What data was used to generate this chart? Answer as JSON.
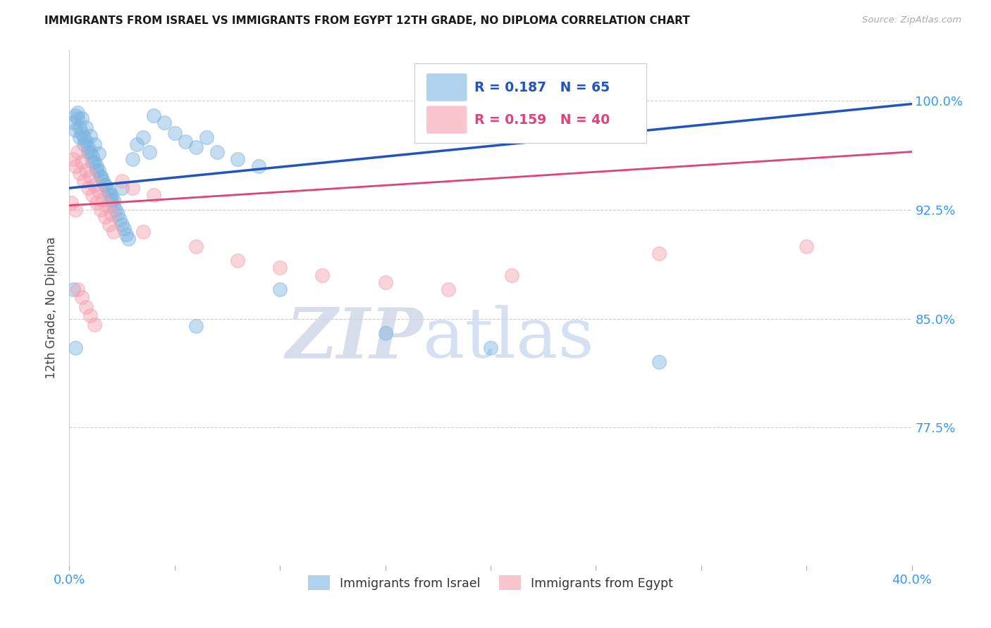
{
  "title": "IMMIGRANTS FROM ISRAEL VS IMMIGRANTS FROM EGYPT 12TH GRADE, NO DIPLOMA CORRELATION CHART",
  "source": "Source: ZipAtlas.com",
  "ylabel": "12th Grade, No Diploma",
  "xlim": [
    0.0,
    0.4
  ],
  "ylim": [
    0.68,
    1.035
  ],
  "israel_R": 0.187,
  "israel_N": 65,
  "egypt_R": 0.159,
  "egypt_N": 40,
  "israel_color": "#7EB5E0",
  "egypt_color": "#F5A0B0",
  "israel_line_color": "#2255BB",
  "egypt_line_color": "#DD4477",
  "legend_israel": "Immigrants from Israel",
  "legend_egypt": "Immigrants from Egypt",
  "watermark_zip": "ZIP",
  "watermark_atlas": "atlas",
  "background_color": "#ffffff",
  "grid_color": "#cccccc",
  "ytick_right": [
    0.775,
    0.85,
    0.925,
    1.0
  ],
  "ytick_right_labels": [
    "77.5%",
    "85.0%",
    "92.5%",
    "100.0%"
  ],
  "israel_x": [
    0.002,
    0.003,
    0.004,
    0.005,
    0.006,
    0.007,
    0.008,
    0.009,
    0.01,
    0.011,
    0.012,
    0.013,
    0.014,
    0.015,
    0.016,
    0.017,
    0.018,
    0.019,
    0.02,
    0.021,
    0.022,
    0.023,
    0.024,
    0.025,
    0.026,
    0.027,
    0.028,
    0.03,
    0.032,
    0.035,
    0.038,
    0.04,
    0.045,
    0.05,
    0.055,
    0.06,
    0.065,
    0.07,
    0.08,
    0.09,
    0.003,
    0.005,
    0.007,
    0.009,
    0.011,
    0.013,
    0.015,
    0.017,
    0.019,
    0.021,
    0.004,
    0.006,
    0.008,
    0.01,
    0.012,
    0.014,
    0.002,
    0.003,
    0.02,
    0.025,
    0.06,
    0.1,
    0.15,
    0.2,
    0.28
  ],
  "israel_y": [
    0.985,
    0.99,
    0.988,
    0.982,
    0.978,
    0.975,
    0.972,
    0.968,
    0.965,
    0.962,
    0.958,
    0.955,
    0.952,
    0.948,
    0.945,
    0.942,
    0.938,
    0.935,
    0.932,
    0.928,
    0.925,
    0.922,
    0.918,
    0.915,
    0.912,
    0.908,
    0.905,
    0.96,
    0.97,
    0.975,
    0.965,
    0.99,
    0.985,
    0.978,
    0.972,
    0.968,
    0.975,
    0.965,
    0.96,
    0.955,
    0.98,
    0.975,
    0.97,
    0.965,
    0.958,
    0.952,
    0.948,
    0.942,
    0.938,
    0.932,
    0.992,
    0.988,
    0.982,
    0.976,
    0.97,
    0.964,
    0.87,
    0.83,
    0.935,
    0.94,
    0.845,
    0.87,
    0.84,
    0.83,
    0.82
  ],
  "egypt_x": [
    0.002,
    0.004,
    0.006,
    0.008,
    0.01,
    0.012,
    0.014,
    0.016,
    0.018,
    0.02,
    0.003,
    0.005,
    0.007,
    0.009,
    0.011,
    0.013,
    0.015,
    0.017,
    0.019,
    0.021,
    0.025,
    0.03,
    0.035,
    0.04,
    0.06,
    0.08,
    0.1,
    0.12,
    0.15,
    0.18,
    0.21,
    0.28,
    0.35,
    0.004,
    0.006,
    0.008,
    0.01,
    0.012,
    0.003,
    0.001
  ],
  "egypt_y": [
    0.96,
    0.965,
    0.958,
    0.952,
    0.948,
    0.942,
    0.938,
    0.932,
    0.928,
    0.922,
    0.955,
    0.95,
    0.945,
    0.94,
    0.935,
    0.93,
    0.925,
    0.92,
    0.915,
    0.91,
    0.945,
    0.94,
    0.91,
    0.935,
    0.9,
    0.89,
    0.885,
    0.88,
    0.875,
    0.87,
    0.88,
    0.895,
    0.9,
    0.87,
    0.865,
    0.858,
    0.852,
    0.846,
    0.925,
    0.93
  ],
  "isr_trend_x0": 0.0,
  "isr_trend_y0": 0.94,
  "isr_trend_x1": 0.4,
  "isr_trend_y1": 0.998,
  "egy_trend_x0": 0.0,
  "egy_trend_y0": 0.928,
  "egy_trend_x1": 0.4,
  "egy_trend_y1": 0.965
}
